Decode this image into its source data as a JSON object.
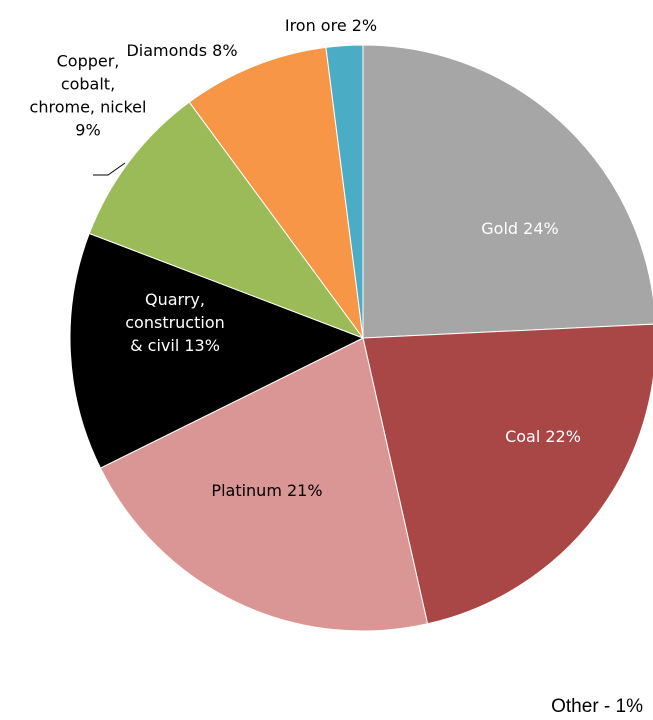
{
  "chart_data": {
    "type": "pie",
    "start_angle_deg": 0,
    "direction": "clockwise",
    "slices": [
      {
        "label_lines": [
          "Gold 24%"
        ],
        "category": "Gold",
        "value": 24,
        "color": "#a6a6a6",
        "label_color": "#ffffff"
      },
      {
        "label_lines": [
          "Coal 22%"
        ],
        "category": "Coal",
        "value": 22,
        "color": "#a94646",
        "label_color": "#ffffff"
      },
      {
        "label_lines": [
          "Platinum 21%"
        ],
        "category": "Platinum",
        "value": 21,
        "color": "#da9694",
        "label_color": "#000000"
      },
      {
        "label_lines": [
          "Quarry,",
          "construction",
          "& civil 13%"
        ],
        "category": "Quarry, construction & civil",
        "value": 13,
        "color": "#000000",
        "label_color": "#ffffff"
      },
      {
        "label_lines": [
          "Copper,",
          "cobalt,",
          "chrome, nickel",
          "9%"
        ],
        "category": "Copper, cobalt, chrome, nickel",
        "value": 9,
        "color": "#9bbb59",
        "label_color": "#000000"
      },
      {
        "label_lines": [
          "Diamonds 8%"
        ],
        "category": "Diamonds",
        "value": 8,
        "color": "#f79646",
        "label_color": "#000000"
      },
      {
        "label_lines": [
          "Iron ore 2%"
        ],
        "category": "Iron ore",
        "value": 2,
        "color": "#4bacc6",
        "label_color": "#000000"
      }
    ],
    "note": "Other - 1%"
  }
}
